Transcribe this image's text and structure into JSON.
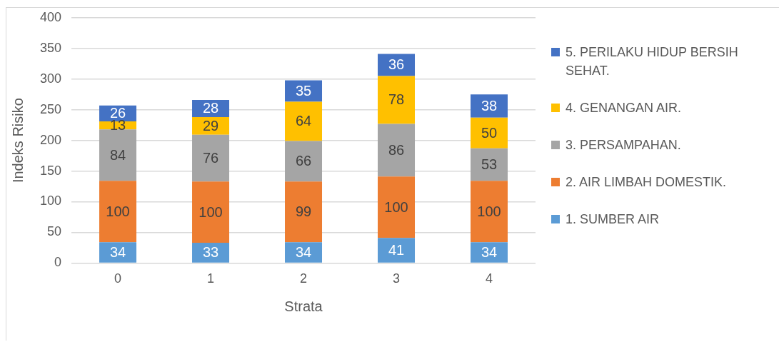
{
  "chart_data": {
    "type": "bar",
    "stacked": true,
    "xlabel": "Strata",
    "ylabel": "Indeks Risiko",
    "categories": [
      "0",
      "1",
      "2",
      "3",
      "4"
    ],
    "series": [
      {
        "name": "1. SUMBER AIR",
        "color": "#5b9bd5",
        "values": [
          34,
          33,
          34,
          41,
          34
        ]
      },
      {
        "name": "2. AIR LIMBAH DOMESTIK.",
        "color": "#ed7d31",
        "values": [
          100,
          100,
          99,
          100,
          100
        ]
      },
      {
        "name": "3. PERSAMPAHAN.",
        "color": "#a5a5a5",
        "values": [
          84,
          76,
          66,
          86,
          53
        ]
      },
      {
        "name": "4. GENANGAN AIR.",
        "color": "#ffc000",
        "values": [
          13,
          29,
          64,
          78,
          50
        ]
      },
      {
        "name": "5. PERILAKU HIDUP BERSIH SEHAT.",
        "color": "#4472c4",
        "values": [
          26,
          28,
          35,
          36,
          38
        ]
      }
    ],
    "ylim": [
      0,
      400
    ],
    "yticks": [
      0,
      50,
      100,
      150,
      200,
      250,
      300,
      350,
      400
    ],
    "grid": "y",
    "legend": "right",
    "data_labels": true
  }
}
